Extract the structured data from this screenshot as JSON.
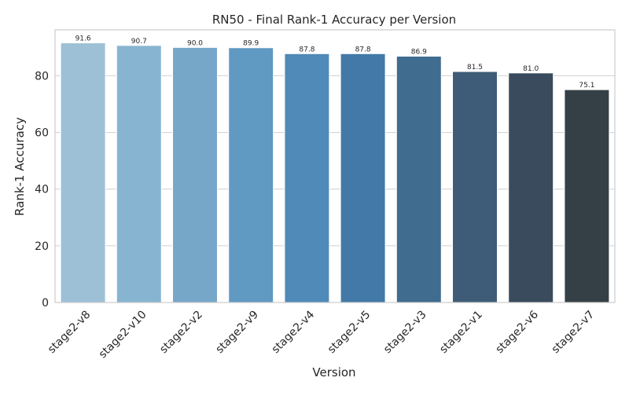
{
  "chart_data": {
    "type": "bar",
    "title": "RN50 - Final Rank-1 Accuracy per Version",
    "xlabel": "Version",
    "ylabel": "Rank-1 Accuracy",
    "categories": [
      "stage2-v8",
      "stage2-v10",
      "stage2-v2",
      "stage2-v9",
      "stage2-v4",
      "stage2-v5",
      "stage2-v3",
      "stage2-v1",
      "stage2-v6",
      "stage2-v7"
    ],
    "values": [
      91.6,
      90.7,
      90.0,
      89.9,
      87.8,
      87.8,
      86.9,
      81.5,
      81.0,
      75.1
    ],
    "value_labels": [
      "91.6",
      "90.7",
      "90.0",
      "89.9",
      "87.8",
      "87.8",
      "86.9",
      "81.5",
      "81.0",
      "75.1"
    ],
    "colors": [
      "#9dc0d6",
      "#87b4d1",
      "#76a7c9",
      "#6099c2",
      "#4f8ab8",
      "#4279a8",
      "#3f6c8f",
      "#3e5c77",
      "#394b5d",
      "#353f46"
    ],
    "yticks": [
      0,
      20,
      40,
      60,
      80
    ],
    "ylim": [
      0,
      96.2
    ],
    "grid": "horizontal",
    "legend": "none"
  }
}
